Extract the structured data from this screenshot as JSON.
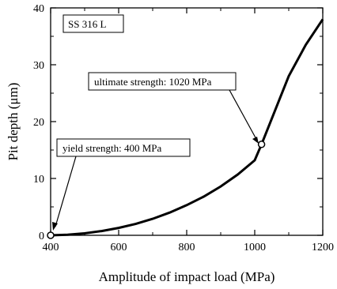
{
  "chart_data": {
    "type": "line",
    "xlabel": "Amplitude of impact load (MPa)",
    "ylabel": "Pit depth (μm)",
    "xlim": [
      400,
      1200
    ],
    "ylim": [
      0,
      40
    ],
    "xticks": [
      400,
      600,
      800,
      1000,
      1200
    ],
    "yticks": [
      0,
      10,
      20,
      30,
      40
    ],
    "grid": false,
    "legend_box": "SS 316 L",
    "series": [
      {
        "x": [
          400,
          450,
          500,
          550,
          600,
          650,
          700,
          750,
          800,
          850,
          900,
          950,
          1000,
          1020,
          1050,
          1100,
          1150,
          1200
        ],
        "y": [
          0,
          0.1,
          0.35,
          0.75,
          1.3,
          2.0,
          2.9,
          4.0,
          5.3,
          6.8,
          8.6,
          10.7,
          13.2,
          16.0,
          20.5,
          28.0,
          33.5,
          38.0
        ]
      }
    ],
    "markers": [
      {
        "x": 400,
        "y": 0
      },
      {
        "x": 1020,
        "y": 16
      }
    ],
    "annotations": [
      {
        "text": "ultimate strength: 1020 MPa",
        "x": 1020,
        "y": 16
      },
      {
        "text": "yield strength: 400 MPa",
        "x": 400,
        "y": 0
      }
    ]
  }
}
